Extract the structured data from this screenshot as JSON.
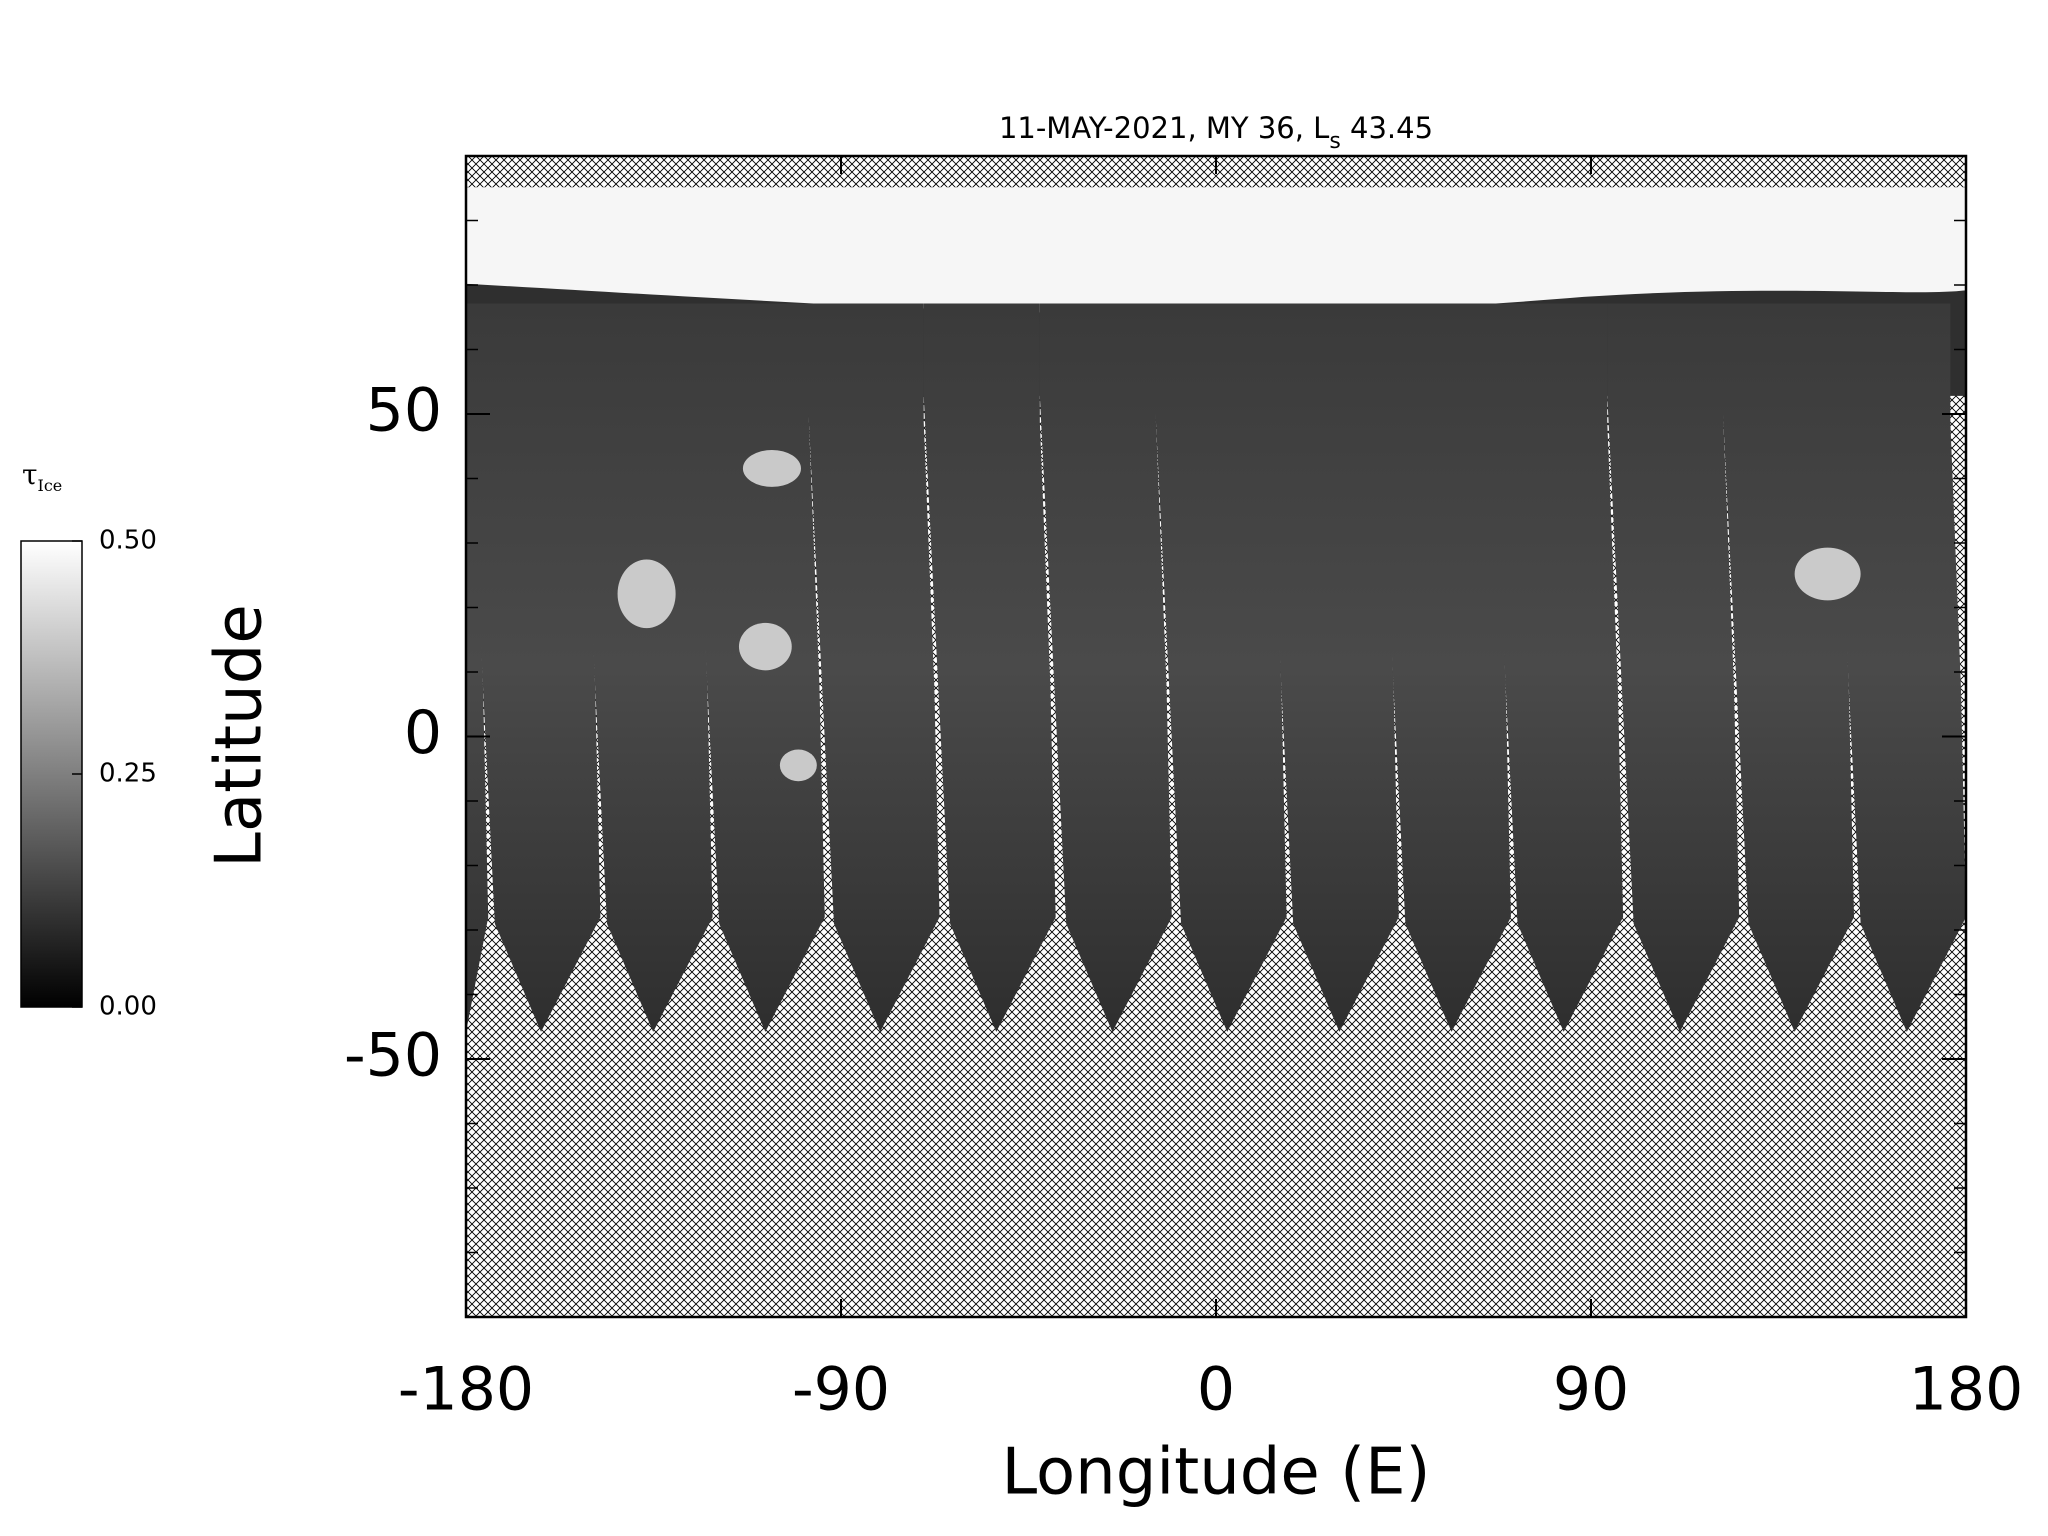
{
  "chart_data": {
    "type": "map",
    "title": [
      "11-MAY-2021, MY 36,  L",
      "s",
      " 43.45"
    ],
    "x_label": "Longitude (E)",
    "y_label": "Latitude",
    "xlim": [
      -180,
      180
    ],
    "xticks": [
      -180,
      -90,
      0,
      90,
      180
    ],
    "ylim": [
      -90,
      90
    ],
    "yticks": [
      -50,
      0,
      50
    ],
    "yminorticks": [
      -80,
      -70,
      -60,
      -40,
      -30,
      -20,
      -10,
      10,
      20,
      30,
      40,
      60,
      70,
      80
    ],
    "colorbar": {
      "label": [
        "τ",
        "Ice"
      ],
      "clim": [
        0,
        0.5
      ],
      "ticks": [
        {
          "value": 0,
          "label": "0.00"
        },
        {
          "value": 0.25,
          "label": "0.25"
        },
        {
          "value": 0.5,
          "label": "0.50"
        }
      ],
      "colors": [
        "#000000",
        "#ffffff"
      ]
    }
  }
}
